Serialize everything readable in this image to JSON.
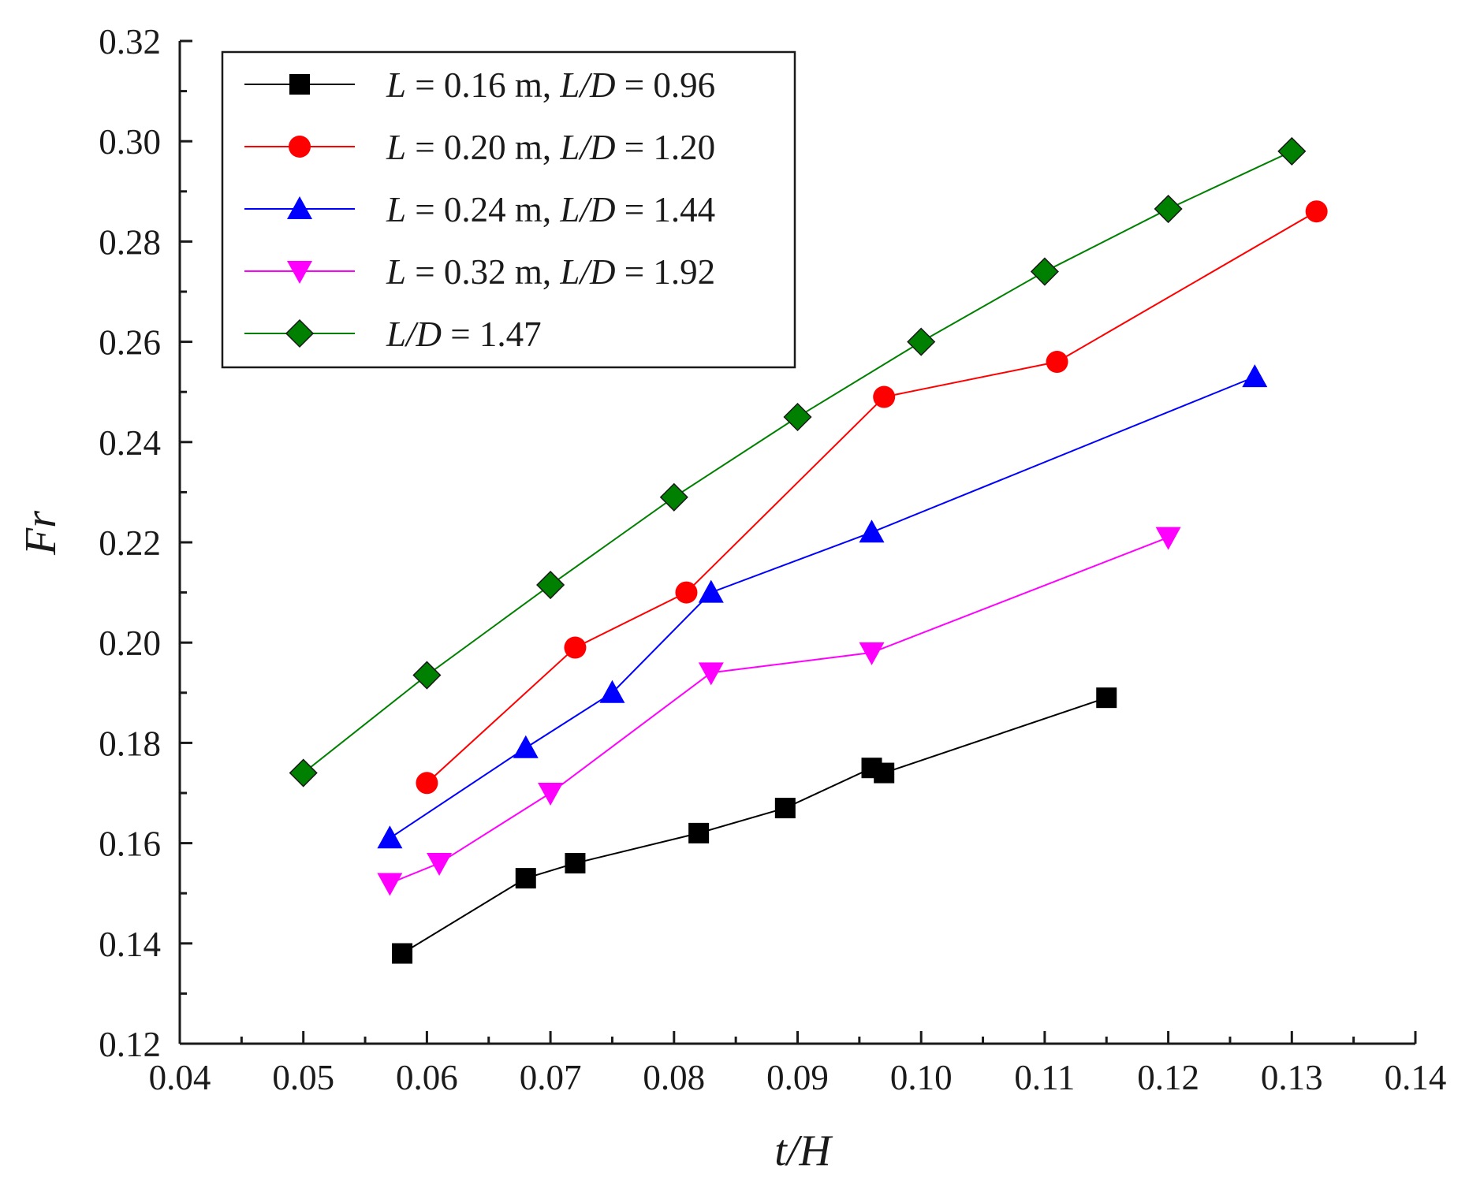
{
  "chart_data": {
    "type": "line",
    "title": "",
    "xlabel": "t/H",
    "ylabel": "Fr",
    "xlim": [
      0.04,
      0.14
    ],
    "ylim": [
      0.12,
      0.32
    ],
    "grid": false,
    "legend_position": "top-left",
    "x_ticks": [
      "0.04",
      "0.05",
      "0.06",
      "0.07",
      "0.08",
      "0.09",
      "0.10",
      "0.11",
      "0.12",
      "0.13",
      "0.14"
    ],
    "y_ticks": [
      "0.12",
      "0.14",
      "0.16",
      "0.18",
      "0.20",
      "0.22",
      "0.24",
      "0.26",
      "0.28",
      "0.30",
      "0.32"
    ],
    "series": [
      {
        "name": "L = 0.16 m, L/D = 0.96",
        "color": "#000000",
        "marker": "square",
        "x": [
          0.058,
          0.068,
          0.072,
          0.082,
          0.089,
          0.096,
          0.097,
          0.115
        ],
        "y": [
          0.138,
          0.153,
          0.156,
          0.162,
          0.167,
          0.175,
          0.174,
          0.189
        ]
      },
      {
        "name": "L = 0.20 m, L/D = 1.20",
        "color": "#ff0000",
        "marker": "circle",
        "x": [
          0.06,
          0.072,
          0.081,
          0.097,
          0.111,
          0.132
        ],
        "y": [
          0.172,
          0.199,
          0.21,
          0.249,
          0.256,
          0.286
        ]
      },
      {
        "name": "L = 0.24 m, L/D = 1.44",
        "color": "#0000ff",
        "marker": "triangle-up",
        "x": [
          0.057,
          0.068,
          0.075,
          0.083,
          0.096,
          0.127
        ],
        "y": [
          0.161,
          0.179,
          0.19,
          0.21,
          0.222,
          0.253
        ]
      },
      {
        "name": "L = 0.32 m, L/D = 1.92",
        "color": "#ff00ff",
        "marker": "triangle-down",
        "x": [
          0.057,
          0.061,
          0.07,
          0.083,
          0.096,
          0.12
        ],
        "y": [
          0.152,
          0.156,
          0.17,
          0.194,
          0.198,
          0.221
        ]
      },
      {
        "name": "L/D = 1.47",
        "color": "#008000",
        "marker": "diamond",
        "x": [
          0.05,
          0.06,
          0.07,
          0.08,
          0.09,
          0.1,
          0.11,
          0.12,
          0.13
        ],
        "y": [
          0.174,
          0.1935,
          0.2115,
          0.229,
          0.245,
          0.26,
          0.274,
          0.2865,
          0.298
        ]
      }
    ]
  },
  "legend": {
    "items": [
      {
        "parts": [
          {
            "t": "L",
            "it": true
          },
          {
            "t": " = 0.16 m, ",
            "it": false
          },
          {
            "t": "L/D",
            "it": true
          },
          {
            "t": " = 0.96",
            "it": false
          }
        ]
      },
      {
        "parts": [
          {
            "t": "L",
            "it": true
          },
          {
            "t": " = 0.20 m, ",
            "it": false
          },
          {
            "t": "L/D",
            "it": true
          },
          {
            "t": " = 1.20",
            "it": false
          }
        ]
      },
      {
        "parts": [
          {
            "t": "L",
            "it": true
          },
          {
            "t": " = 0.24 m, ",
            "it": false
          },
          {
            "t": "L/D",
            "it": true
          },
          {
            "t": " = 1.44",
            "it": false
          }
        ]
      },
      {
        "parts": [
          {
            "t": "L",
            "it": true
          },
          {
            "t": " = 0.32 m, ",
            "it": false
          },
          {
            "t": "L/D",
            "it": true
          },
          {
            "t": " = 1.92",
            "it": false
          }
        ]
      },
      {
        "parts": [
          {
            "t": "L/D",
            "it": true
          },
          {
            "t": " = 1.47",
            "it": false
          }
        ]
      }
    ]
  }
}
